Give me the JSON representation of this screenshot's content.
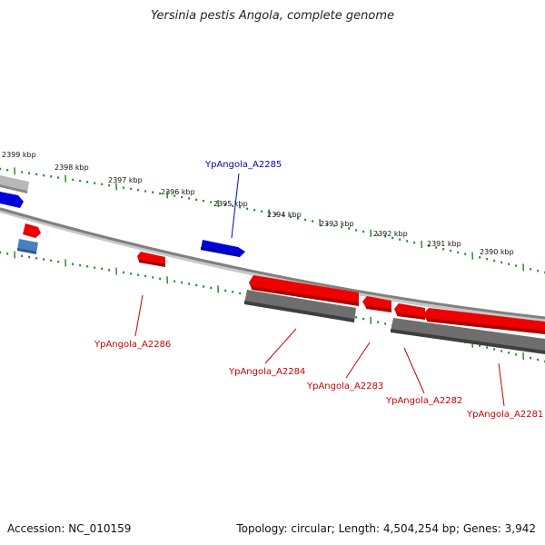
{
  "title": "Yersinia pestis Angola, complete genome",
  "footer": {
    "accession": "Accession: NC_010159",
    "topology": "Topology: circular; Length: 4,504,254 bp; Genes: 3,942"
  },
  "colors": {
    "backbone": "#8c8c8c",
    "tick": "#2e8b2e",
    "forward_gene": "#e00000",
    "reverse_gene": "#666666",
    "highlight_gene": "#0000dd",
    "other_gene": "#4a7fc0",
    "label_red": "#cc0000",
    "label_blue": "#0000cc"
  },
  "scale_labels": [
    "2399 kbp",
    "2398 kbp",
    "2397 kbp",
    "2396 kbp",
    "2395 kbp",
    "2394 kbp",
    "2393 kbp",
    "2392 kbp",
    "2391 kbp",
    "2390 kbp"
  ],
  "gene_labels": [
    {
      "id": "YpAngola_A2285",
      "color": "blue"
    },
    {
      "id": "YpAngola_A2286",
      "color": "red"
    },
    {
      "id": "YpAngola_A2284",
      "color": "red"
    },
    {
      "id": "YpAngola_A2283",
      "color": "red"
    },
    {
      "id": "YpAngola_A2282",
      "color": "red"
    },
    {
      "id": "YpAngola_A2281",
      "color": "red"
    }
  ]
}
